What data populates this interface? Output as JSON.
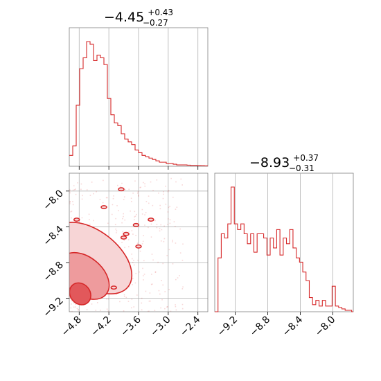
{
  "chart_data": {
    "type": "corner",
    "color": "#d62728",
    "grid": true,
    "panels": [
      {
        "kind": "histogram",
        "param_index": 0,
        "title": {
          "median": "−4.45",
          "upper": "+0.43",
          "lower": "−0.27"
        },
        "xlim": [
          -5.0,
          -2.2
        ],
        "bin_start": -5.0,
        "bin_width": 0.07,
        "counts": [
          0.08,
          0.15,
          0.45,
          0.72,
          0.8,
          0.92,
          0.9,
          0.78,
          0.82,
          0.8,
          0.75,
          0.5,
          0.38,
          0.32,
          0.3,
          0.24,
          0.2,
          0.18,
          0.16,
          0.12,
          0.1,
          0.08,
          0.07,
          0.06,
          0.05,
          0.04,
          0.03,
          0.03,
          0.02,
          0.02,
          0.015,
          0.01,
          0.01,
          0.01,
          0.008,
          0.006,
          0.006,
          0.005,
          0.004,
          0.003
        ]
      },
      {
        "kind": "contour2d",
        "x_param": 0,
        "y_param": 1,
        "xlim": [
          -5.0,
          -2.2
        ],
        "ylim": [
          -9.35,
          -7.8
        ],
        "xticks": [
          "−4.8",
          "−4.2",
          "−3.6",
          "−3.0",
          "−2.4"
        ],
        "xtick_values": [
          -4.8,
          -4.2,
          -3.6,
          -3.0,
          -2.4
        ],
        "yticks": [
          "−8.0",
          "−8.4",
          "−8.8",
          "−9.2"
        ],
        "ytick_values": [
          -8.0,
          -8.4,
          -8.8,
          -9.2
        ]
      },
      {
        "kind": "histogram",
        "param_index": 1,
        "title": {
          "median": "−8.93",
          "upper": "+0.37",
          "lower": "−0.31"
        },
        "xlim": [
          -9.45,
          -7.75
        ],
        "bin_start": -9.45,
        "bin_width": 0.04,
        "counts": [
          0.0,
          0.38,
          0.55,
          0.52,
          0.62,
          0.88,
          0.62,
          0.58,
          0.62,
          0.55,
          0.48,
          0.55,
          0.42,
          0.55,
          0.55,
          0.52,
          0.4,
          0.52,
          0.45,
          0.58,
          0.4,
          0.52,
          0.48,
          0.58,
          0.45,
          0.38,
          0.35,
          0.28,
          0.22,
          0.1,
          0.05,
          0.08,
          0.04,
          0.08,
          0.04,
          0.04,
          0.18,
          0.04,
          0.03,
          0.02,
          0.01,
          0.01,
          0.0
        ],
        "xticks": [
          "−9.2",
          "−8.8",
          "−8.4",
          "−8.0"
        ],
        "xtick_values": [
          -9.2,
          -8.8,
          -8.4,
          -8.0
        ]
      }
    ],
    "contours": [
      {
        "level": "outer",
        "cx": -4.55,
        "cy": -8.75,
        "rx": 0.55,
        "ry": 0.52,
        "angle": -52,
        "fill": "#f7d5d6"
      },
      {
        "level": "mid",
        "cx": -4.7,
        "cy": -8.95,
        "rx": 0.38,
        "ry": 0.32,
        "angle": -50,
        "fill": "#ee9b9d"
      },
      {
        "level": "inner",
        "cx": -4.78,
        "cy": -9.15,
        "rx": 0.2,
        "ry": 0.13,
        "angle": -40,
        "fill": "#e2585b"
      }
    ],
    "islands": [
      {
        "x": -4.85,
        "y": -8.32
      },
      {
        "x": -4.3,
        "y": -8.18
      },
      {
        "x": -3.95,
        "y": -7.98
      },
      {
        "x": -3.65,
        "y": -8.38
      },
      {
        "x": -3.6,
        "y": -8.62
      },
      {
        "x": -3.35,
        "y": -8.32
      },
      {
        "x": -3.9,
        "y": -8.52
      },
      {
        "x": -4.1,
        "y": -9.08
      },
      {
        "x": -3.85,
        "y": -8.48
      }
    ]
  }
}
